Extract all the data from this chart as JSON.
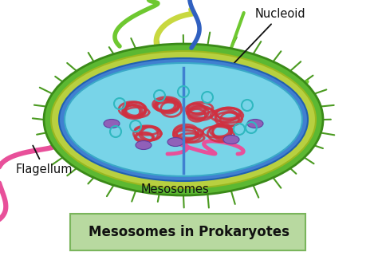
{
  "title_text": "Mesosomes in Prokaryotes",
  "title_box_facecolor": "#b8d9a0",
  "title_box_edgecolor": "#7ab55c",
  "title_text_color": "#111111",
  "title_fontsize": 12,
  "label_fontsize": 10.5,
  "bg_color": "#ffffff",
  "label_nucleoid": "Nucleoid",
  "label_flagellum": "Flagellum",
  "label_mesosomes": "Mesosomes",
  "arrow_color": "#111111",
  "outer_cell_color": "#5cb832",
  "outer_cell_edge": "#3a8a18",
  "inner_green_color": "#c8e040",
  "cytoplasm_color": "#78d4e8",
  "cytoplasm_edge": "#3aa8c8",
  "blue_membrane_color": "#4080d0",
  "pink_color": "#e8509a",
  "red_coil_color": "#d03040",
  "purple_color": "#9060b8",
  "teal_circle_color": "#30b8c0",
  "spike_color": "#4a9a20",
  "yellow_green_color": "#b8d040",
  "blue_flagellum_color": "#3060c0"
}
